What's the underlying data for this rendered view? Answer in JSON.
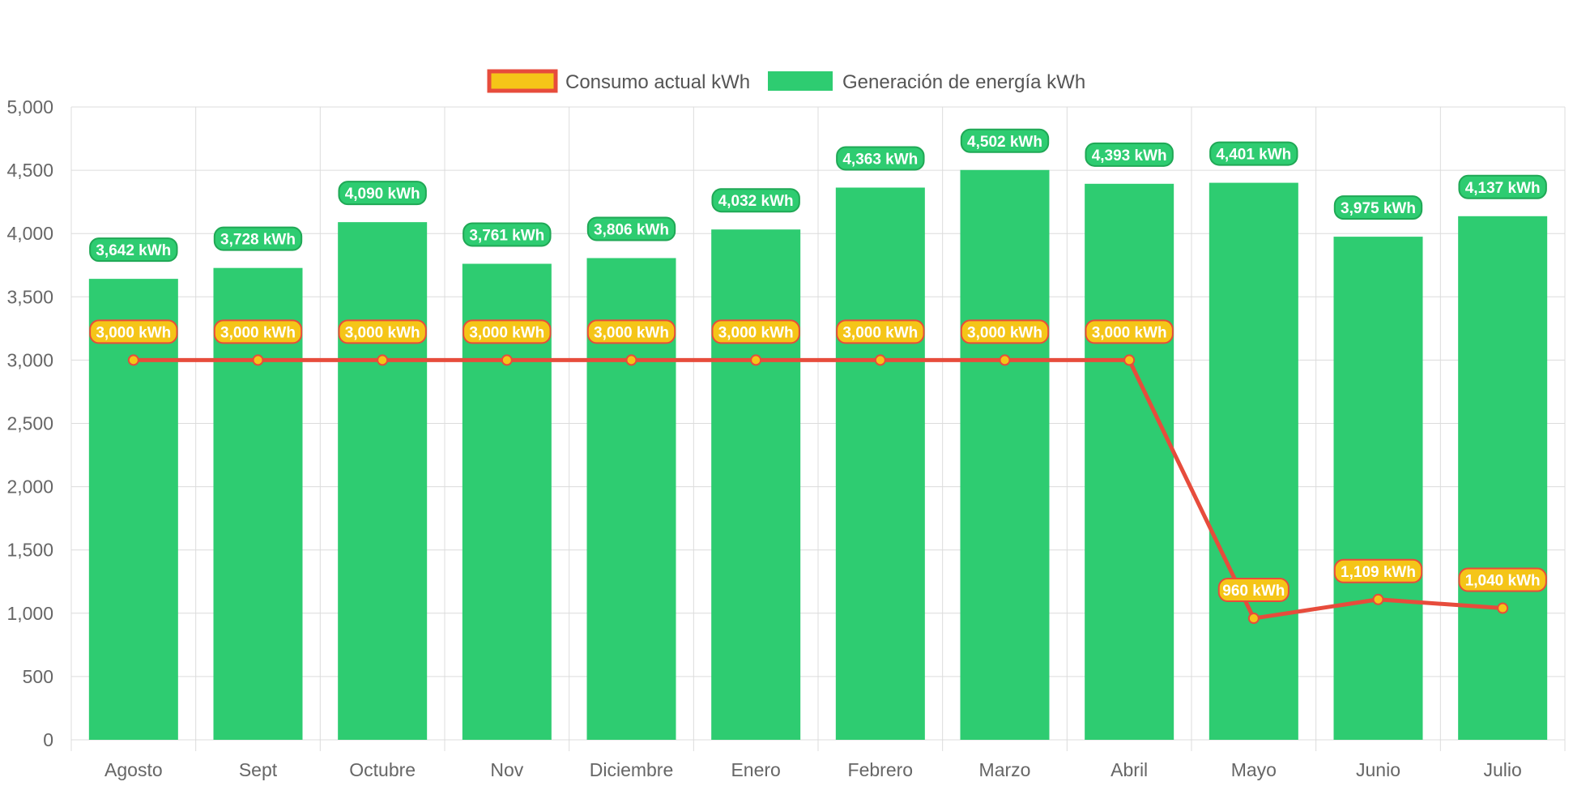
{
  "chart_data": {
    "type": "bar",
    "categories": [
      "Agosto",
      "Sept",
      "Octubre",
      "Nov",
      "Diciembre",
      "Enero",
      "Febrero",
      "Marzo",
      "Abril",
      "Mayo",
      "Junio",
      "Julio"
    ],
    "series": [
      {
        "name": "Consumo actual kWh",
        "type": "line",
        "values": [
          3000,
          3000,
          3000,
          3000,
          3000,
          3000,
          3000,
          3000,
          3000,
          960,
          1109,
          1040
        ],
        "labels": [
          "3,000 kWh",
          "3,000 kWh",
          "3,000 kWh",
          "3,000 kWh",
          "3,000 kWh",
          "3,000 kWh",
          "3,000 kWh",
          "3,000 kWh",
          "3,000 kWh",
          "960 kWh",
          "1,109 kWh",
          "1,040 kWh"
        ],
        "color": "#e74c3c",
        "fill_color": "#f5c518"
      },
      {
        "name": "Generación de energía kWh",
        "type": "bar",
        "values": [
          3642,
          3728,
          4090,
          3761,
          3806,
          4032,
          4363,
          4502,
          4393,
          4401,
          3975,
          4137
        ],
        "labels": [
          "3,642 kWh",
          "3,728 kWh",
          "4,090 kWh",
          "3,761 kWh",
          "3,806 kWh",
          "4,032 kWh",
          "4,363 kWh",
          "4,502 kWh",
          "4,393 kWh",
          "4,401 kWh",
          "3,975 kWh",
          "4,137 kWh"
        ],
        "color": "#2ecc71"
      }
    ],
    "yticks": [
      "0",
      "500",
      "1,000",
      "1,500",
      "2,000",
      "2,500",
      "3,000",
      "3,500",
      "4,000",
      "4,500",
      "5,000"
    ],
    "ylim": [
      0,
      5000
    ],
    "ystep": 500,
    "grid": true,
    "legend_position": "top-center",
    "title": "",
    "xlabel": "",
    "ylabel": ""
  }
}
